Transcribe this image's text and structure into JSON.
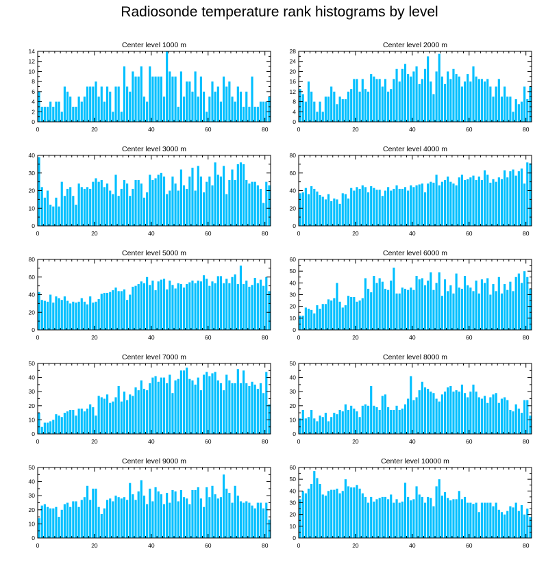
{
  "title": "Radiosonde temperature rank histograms by level",
  "colors": {
    "bar": "#00bfff",
    "axis": "#000000",
    "background": "#ffffff"
  },
  "chart_data": [
    {
      "type": "bar",
      "title": "Center level 1000 m",
      "xlim": [
        0,
        82
      ],
      "ylim": [
        0,
        14
      ],
      "xticks": [
        0,
        20,
        40,
        60,
        80
      ],
      "yticks": [
        0,
        2,
        4,
        6,
        8,
        10,
        12,
        14
      ],
      "values": [
        6,
        3,
        3,
        3,
        4,
        3,
        4,
        4,
        2,
        7,
        6,
        5,
        3,
        3,
        5,
        4,
        5,
        7,
        7,
        7,
        8,
        5,
        7,
        4,
        7,
        6,
        2,
        7,
        7,
        2,
        11,
        7,
        6,
        10,
        9,
        9,
        11,
        5,
        4,
        11,
        9,
        9,
        9,
        9,
        5,
        14,
        10,
        9,
        9,
        3,
        10,
        5,
        8,
        8,
        6,
        10,
        5,
        9,
        6,
        2,
        5,
        8,
        6,
        7,
        4,
        9,
        7,
        8,
        5,
        4,
        7,
        6,
        3,
        6,
        3,
        9,
        3,
        3,
        4,
        4,
        4,
        5
      ]
    },
    {
      "type": "bar",
      "title": "Center level 2000 m",
      "xlim": [
        0,
        82
      ],
      "ylim": [
        0,
        28
      ],
      "xticks": [
        0,
        20,
        40,
        60,
        80
      ],
      "yticks": [
        0,
        4,
        8,
        12,
        16,
        20,
        24,
        28
      ],
      "values": [
        13,
        11,
        8,
        16,
        12,
        8,
        4,
        8,
        4,
        10,
        10,
        14,
        12,
        7,
        10,
        9,
        9,
        12,
        13,
        17,
        17,
        12,
        17,
        13,
        12,
        19,
        18,
        17,
        17,
        14,
        17,
        12,
        13,
        17,
        21,
        16,
        21,
        23,
        19,
        18,
        20,
        22,
        15,
        17,
        21,
        26,
        16,
        11,
        20,
        27,
        18,
        15,
        20,
        17,
        21,
        19,
        18,
        14,
        16,
        19,
        16,
        22,
        18,
        17,
        17,
        16,
        17,
        14,
        10,
        14,
        17,
        10,
        14,
        10,
        10,
        4,
        9,
        7,
        8,
        14,
        9,
        14
      ]
    },
    {
      "type": "bar",
      "title": "Center level 3000 m",
      "xlim": [
        0,
        82
      ],
      "ylim": [
        0,
        40
      ],
      "xticks": [
        0,
        20,
        40,
        60,
        80
      ],
      "yticks": [
        0,
        10,
        20,
        30,
        40
      ],
      "values": [
        39,
        22,
        16,
        20,
        12,
        11,
        16,
        11,
        25,
        17,
        21,
        22,
        17,
        12,
        24,
        22,
        21,
        22,
        21,
        25,
        27,
        25,
        26,
        22,
        24,
        20,
        18,
        29,
        17,
        21,
        26,
        24,
        17,
        21,
        26,
        26,
        24,
        16,
        19,
        29,
        26,
        27,
        29,
        30,
        28,
        18,
        20,
        28,
        24,
        20,
        32,
        23,
        21,
        28,
        33,
        20,
        34,
        28,
        19,
        25,
        28,
        23,
        36,
        29,
        28,
        34,
        18,
        26,
        32,
        26,
        35,
        36,
        35,
        26,
        24,
        25,
        25,
        23,
        21,
        13,
        25,
        23
      ]
    },
    {
      "type": "bar",
      "title": "Center level 4000 m",
      "xlim": [
        0,
        82
      ],
      "ylim": [
        0,
        80
      ],
      "xticks": [
        0,
        20,
        40,
        60,
        80
      ],
      "yticks": [
        0,
        20,
        40,
        60,
        80
      ],
      "values": [
        37,
        38,
        43,
        36,
        45,
        42,
        39,
        35,
        33,
        30,
        36,
        28,
        31,
        30,
        25,
        37,
        36,
        31,
        43,
        40,
        44,
        42,
        46,
        44,
        38,
        45,
        43,
        41,
        41,
        34,
        40,
        44,
        40,
        42,
        46,
        42,
        42,
        44,
        40,
        46,
        44,
        46,
        47,
        48,
        38,
        48,
        50,
        49,
        58,
        46,
        50,
        52,
        56,
        50,
        48,
        46,
        55,
        58,
        52,
        53,
        55,
        57,
        52,
        56,
        52,
        63,
        58,
        49,
        53,
        50,
        55,
        53,
        63,
        55,
        62,
        64,
        57,
        62,
        65,
        48,
        72,
        71
      ]
    },
    {
      "type": "bar",
      "title": "Center level 5000 m",
      "xlim": [
        0,
        82
      ],
      "ylim": [
        0,
        80
      ],
      "xticks": [
        0,
        20,
        40,
        60,
        80
      ],
      "yticks": [
        0,
        20,
        40,
        60,
        80
      ],
      "values": [
        43,
        34,
        33,
        32,
        40,
        31,
        38,
        36,
        34,
        38,
        33,
        30,
        32,
        31,
        32,
        36,
        32,
        29,
        38,
        31,
        32,
        35,
        41,
        42,
        42,
        43,
        45,
        48,
        44,
        44,
        46,
        34,
        40,
        49,
        50,
        52,
        55,
        53,
        60,
        51,
        56,
        45,
        55,
        57,
        58,
        46,
        56,
        51,
        47,
        53,
        52,
        48,
        52,
        54,
        56,
        53,
        56,
        55,
        62,
        58,
        50,
        55,
        53,
        61,
        61,
        53,
        58,
        53,
        60,
        63,
        52,
        73,
        52,
        56,
        49,
        51,
        59,
        53,
        57,
        50,
        60,
        44
      ]
    },
    {
      "type": "bar",
      "title": "Center level 6000 m",
      "xlim": [
        0,
        82
      ],
      "ylim": [
        0,
        60
      ],
      "xticks": [
        0,
        20,
        40,
        60,
        80
      ],
      "yticks": [
        0,
        10,
        20,
        30,
        40,
        50,
        60
      ],
      "values": [
        12,
        12,
        19,
        18,
        17,
        14,
        21,
        18,
        22,
        22,
        26,
        25,
        27,
        40,
        24,
        19,
        21,
        29,
        28,
        28,
        24,
        25,
        27,
        44,
        35,
        32,
        46,
        40,
        44,
        41,
        35,
        34,
        42,
        53,
        31,
        31,
        36,
        35,
        34,
        36,
        34,
        46,
        43,
        44,
        38,
        42,
        49,
        34,
        40,
        49,
        29,
        43,
        33,
        38,
        31,
        48,
        36,
        35,
        46,
        38,
        36,
        33,
        42,
        31,
        43,
        40,
        44,
        30,
        39,
        33,
        45,
        31,
        39,
        34,
        41,
        33,
        45,
        48,
        40,
        50,
        45,
        35
      ]
    },
    {
      "type": "bar",
      "title": "Center level 7000 m",
      "xlim": [
        0,
        82
      ],
      "ylim": [
        0,
        50
      ],
      "xticks": [
        0,
        20,
        40,
        60,
        80
      ],
      "yticks": [
        0,
        10,
        20,
        30,
        40,
        50
      ],
      "values": [
        15,
        5,
        8,
        8,
        9,
        10,
        14,
        13,
        12,
        15,
        16,
        17,
        17,
        13,
        18,
        18,
        16,
        18,
        21,
        19,
        13,
        27,
        26,
        25,
        28,
        22,
        23,
        26,
        34,
        23,
        30,
        24,
        28,
        27,
        33,
        31,
        38,
        32,
        31,
        36,
        40,
        41,
        37,
        40,
        40,
        36,
        42,
        29,
        38,
        39,
        45,
        45,
        47,
        39,
        38,
        35,
        40,
        31,
        42,
        44,
        41,
        43,
        44,
        38,
        36,
        31,
        42,
        38,
        36,
        36,
        46,
        36,
        45,
        36,
        34,
        37,
        35,
        32,
        36,
        29,
        44,
        21
      ]
    },
    {
      "type": "bar",
      "title": "Center level 8000 m",
      "xlim": [
        0,
        82
      ],
      "ylim": [
        0,
        50
      ],
      "xticks": [
        0,
        20,
        40,
        60,
        80
      ],
      "yticks": [
        0,
        10,
        20,
        30,
        40,
        50
      ],
      "values": [
        11,
        17,
        11,
        12,
        17,
        11,
        9,
        13,
        12,
        15,
        9,
        12,
        15,
        14,
        17,
        16,
        21,
        17,
        20,
        18,
        16,
        12,
        20,
        21,
        20,
        34,
        20,
        19,
        17,
        27,
        28,
        19,
        17,
        17,
        20,
        17,
        18,
        21,
        25,
        41,
        24,
        26,
        31,
        37,
        33,
        32,
        30,
        29,
        25,
        23,
        28,
        30,
        33,
        34,
        30,
        31,
        30,
        35,
        29,
        26,
        30,
        35,
        30,
        26,
        25,
        27,
        22,
        26,
        28,
        29,
        22,
        25,
        26,
        24,
        17,
        16,
        21,
        18,
        15,
        24,
        24,
        13
      ]
    },
    {
      "type": "bar",
      "title": "Center level 9000 m",
      "xlim": [
        0,
        82
      ],
      "ylim": [
        0,
        50
      ],
      "xticks": [
        0,
        20,
        40,
        60,
        80
      ],
      "yticks": [
        0,
        10,
        20,
        30,
        40,
        50
      ],
      "values": [
        14,
        23,
        24,
        22,
        21,
        21,
        22,
        15,
        20,
        24,
        25,
        22,
        26,
        26,
        22,
        27,
        29,
        37,
        27,
        35,
        35,
        22,
        17,
        21,
        27,
        28,
        26,
        30,
        29,
        28,
        29,
        27,
        39,
        31,
        27,
        33,
        41,
        30,
        24,
        35,
        26,
        36,
        33,
        31,
        24,
        32,
        25,
        34,
        33,
        26,
        34,
        29,
        28,
        24,
        34,
        34,
        36,
        28,
        22,
        36,
        29,
        37,
        31,
        28,
        29,
        45,
        35,
        32,
        25,
        37,
        30,
        26,
        25,
        26,
        25,
        23,
        21,
        25,
        25,
        21,
        25,
        13
      ]
    },
    {
      "type": "bar",
      "title": "Center level 10000 m",
      "xlim": [
        0,
        82
      ],
      "ylim": [
        0,
        60
      ],
      "xticks": [
        0,
        20,
        40,
        60,
        80
      ],
      "yticks": [
        0,
        10,
        20,
        30,
        40,
        50,
        60
      ],
      "values": [
        33,
        40,
        38,
        42,
        46,
        57,
        51,
        46,
        37,
        36,
        40,
        41,
        41,
        42,
        38,
        40,
        50,
        44,
        43,
        43,
        45,
        42,
        38,
        35,
        30,
        35,
        31,
        33,
        34,
        35,
        35,
        33,
        37,
        30,
        33,
        30,
        31,
        47,
        35,
        32,
        33,
        44,
        37,
        35,
        30,
        35,
        34,
        27,
        44,
        50,
        36,
        39,
        34,
        32,
        33,
        33,
        40,
        33,
        35,
        30,
        30,
        29,
        30,
        22,
        30,
        30,
        30,
        30,
        27,
        30,
        24,
        22,
        20,
        23,
        27,
        26,
        30,
        23,
        28,
        20,
        25,
        18
      ]
    }
  ]
}
